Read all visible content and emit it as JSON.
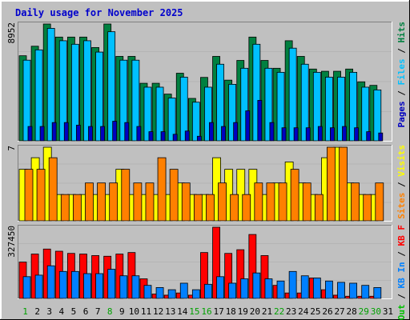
{
  "chart_data": [
    {
      "type": "bar",
      "title": "Daily usage for November 2025",
      "categories": [
        "1",
        "2",
        "3",
        "4",
        "5",
        "6",
        "7",
        "8",
        "9",
        "10",
        "11",
        "12",
        "13",
        "14",
        "15",
        "16",
        "17",
        "18",
        "19",
        "20",
        "21",
        "22",
        "23",
        "24",
        "25",
        "26",
        "27",
        "28",
        "29",
        "30",
        "31"
      ],
      "weekend_days": [
        "1",
        "8",
        "15",
        "16",
        "22",
        "29",
        "30"
      ],
      "ymax_label": "8952",
      "ylim": [
        0,
        8952
      ],
      "series": [
        {
          "name": "Hits",
          "color": "#008040",
          "values": [
            6520,
            7250,
            8952,
            7950,
            7950,
            7950,
            7150,
            8952,
            6470,
            6470,
            4410,
            4410,
            3580,
            5180,
            3250,
            4860,
            6470,
            4650,
            6160,
            7950,
            6160,
            5560,
            7670,
            6470,
            5500,
            5330,
            5330,
            5500,
            4520,
            4250,
            null
          ]
        },
        {
          "name": "Files",
          "color": "#00c0ff",
          "values": [
            6180,
            6970,
            8620,
            7670,
            7400,
            7670,
            6800,
            8360,
            6180,
            6180,
            4110,
            4110,
            3280,
            4880,
            2960,
            4110,
            5870,
            4330,
            5560,
            7400,
            5560,
            5250,
            7100,
            5870,
            5250,
            4880,
            4880,
            5250,
            4110,
            3900,
            null
          ]
        },
        {
          "name": "Pages",
          "color": "#0000c0",
          "values": [
            1100,
            1100,
            1400,
            1400,
            1200,
            1100,
            1100,
            1500,
            1400,
            1100,
            700,
            700,
            500,
            750,
            350,
            1400,
            1100,
            1400,
            2300,
            3100,
            1400,
            1000,
            1000,
            1000,
            1100,
            1000,
            1100,
            1000,
            700,
            600,
            null
          ]
        }
      ]
    },
    {
      "type": "bar",
      "ymax_label": "7",
      "ylim": [
        0,
        7
      ],
      "series": [
        {
          "name": "Visits",
          "color": "#ffff00",
          "values": [
            4.9,
            6.0,
            7.0,
            2.5,
            2.5,
            2.5,
            2.5,
            2.5,
            4.9,
            2.5,
            2.5,
            2.5,
            2.5,
            3.6,
            2.5,
            2.5,
            6.0,
            4.9,
            4.9,
            4.9,
            2.5,
            3.6,
            5.6,
            3.6,
            2.5,
            6.0,
            7.0,
            3.6,
            2.5,
            2.5,
            null
          ]
        },
        {
          "name": "Sites",
          "color": "#ff8000",
          "values": [
            4.9,
            4.9,
            6.0,
            2.5,
            2.5,
            3.6,
            3.6,
            3.6,
            4.9,
            3.6,
            3.6,
            6.0,
            4.9,
            3.6,
            2.5,
            2.5,
            3.6,
            2.5,
            2.5,
            3.6,
            3.6,
            3.6,
            4.9,
            3.6,
            2.5,
            7.0,
            7.0,
            3.6,
            2.5,
            3.6,
            null
          ]
        }
      ]
    },
    {
      "type": "bar",
      "ymax_label": "327450",
      "ylim": [
        0,
        327450
      ],
      "series": [
        {
          "name": "KB F",
          "color": "#ff0000",
          "values": [
            167000,
            204000,
            227000,
            217000,
            207000,
            204000,
            197000,
            194000,
            204000,
            211000,
            90000,
            20000,
            15000,
            25000,
            15000,
            211000,
            327450,
            207000,
            224000,
            294000,
            197000,
            60000,
            25000,
            25000,
            94000,
            40000,
            15000,
            10000,
            10000,
            10000,
            null
          ]
        },
        {
          "name": "KB In",
          "color": "#0080ff",
          "values": [
            100000,
            107000,
            150000,
            124000,
            124000,
            114000,
            114000,
            134000,
            104000,
            104000,
            60000,
            50000,
            40000,
            70000,
            40000,
            65000,
            100000,
            70000,
            90000,
            117000,
            90000,
            80000,
            124000,
            104000,
            94000,
            80000,
            74000,
            70000,
            60000,
            50000,
            null
          ]
        },
        {
          "name": "KB Out",
          "color": "#00c000",
          "values": []
        }
      ]
    }
  ],
  "side_label_sep": " / "
}
